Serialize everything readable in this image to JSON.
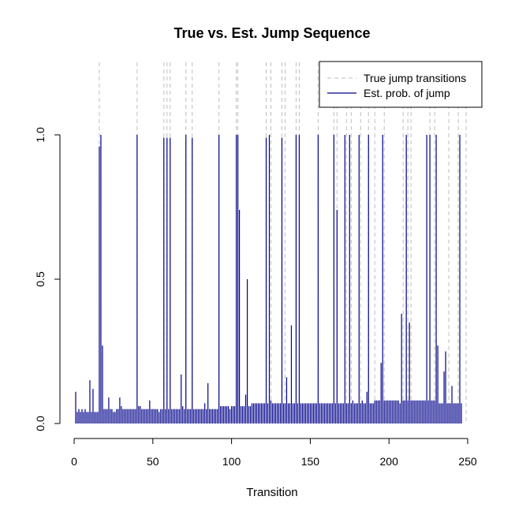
{
  "chart_data": {
    "type": "bar",
    "title": "True vs. Est. Jump Sequence",
    "xlabel": "Transition",
    "ylabel": "",
    "xlim": [
      1,
      250
    ],
    "ylim": [
      0,
      1
    ],
    "x_ticks": [
      0,
      50,
      100,
      150,
      200,
      250
    ],
    "y_ticks": [
      0.0,
      0.5,
      1.0
    ],
    "y_tick_labels": [
      "0.0",
      "0.5",
      "1.0"
    ],
    "grid": false,
    "legend_position": "top-right",
    "colors": {
      "true_jump": "#bebebe",
      "est_prob": "#00008b"
    },
    "series": [
      {
        "name": "True jump transitions",
        "style": "dashed vertical lines",
        "x": [
          16,
          40,
          57,
          59,
          61,
          71,
          75,
          92,
          103,
          104,
          122,
          125,
          132,
          134,
          141,
          143,
          155,
          165,
          167,
          173,
          176,
          182,
          187,
          191,
          197,
          209,
          212,
          214,
          226,
          229,
          238,
          244,
          249
        ]
      },
      {
        "name": "Est. prob. of jump",
        "style": "vertical bars",
        "values": [
          0.11,
          0.04,
          0.05,
          0.04,
          0.05,
          0.04,
          0.05,
          0.04,
          0.04,
          0.15,
          0.04,
          0.12,
          0.04,
          0.04,
          0.04,
          0.96,
          1.0,
          0.27,
          0.05,
          0.05,
          0.05,
          0.09,
          0.05,
          0.05,
          0.04,
          0.04,
          0.05,
          0.05,
          0.09,
          0.06,
          0.05,
          0.05,
          0.05,
          0.05,
          0.05,
          0.05,
          0.05,
          0.05,
          0.05,
          1.0,
          0.06,
          0.06,
          0.05,
          0.05,
          0.05,
          0.05,
          0.05,
          0.08,
          0.05,
          0.05,
          0.05,
          0.05,
          0.05,
          0.04,
          0.05,
          0.05,
          0.99,
          0.05,
          0.99,
          0.05,
          0.99,
          0.05,
          0.05,
          0.05,
          0.05,
          0.05,
          0.05,
          0.17,
          0.06,
          0.05,
          1.0,
          0.05,
          0.05,
          0.05,
          0.99,
          0.05,
          0.05,
          0.05,
          0.05,
          0.05,
          0.05,
          0.05,
          0.07,
          0.05,
          0.14,
          0.05,
          0.05,
          0.05,
          0.05,
          0.05,
          0.05,
          1.0,
          0.06,
          0.06,
          0.06,
          0.06,
          0.06,
          0.06,
          0.05,
          0.06,
          0.06,
          0.06,
          1.0,
          1.0,
          0.74,
          0.06,
          0.06,
          0.06,
          0.1,
          0.5,
          0.06,
          0.06,
          0.07,
          0.07,
          0.07,
          0.07,
          0.07,
          0.07,
          0.07,
          0.07,
          0.07,
          0.99,
          0.07,
          1.0,
          0.08,
          0.07,
          0.07,
          0.07,
          0.07,
          0.07,
          0.07,
          0.99,
          0.07,
          0.07,
          0.16,
          0.07,
          0.07,
          0.34,
          0.07,
          0.07,
          1.0,
          0.07,
          1.0,
          0.07,
          0.07,
          0.07,
          0.07,
          0.07,
          0.07,
          0.07,
          0.07,
          0.07,
          0.07,
          0.07,
          1.0,
          0.07,
          0.07,
          0.07,
          0.07,
          0.07,
          0.07,
          0.07,
          0.07,
          0.07,
          1.0,
          0.07,
          0.74,
          0.07,
          0.07,
          0.07,
          0.07,
          1.0,
          0.07,
          0.07,
          1.0,
          0.07,
          0.08,
          0.07,
          0.07,
          0.07,
          1.0,
          0.07,
          0.08,
          0.07,
          0.07,
          0.11,
          1.0,
          0.07,
          0.07,
          0.07,
          0.08,
          0.08,
          0.08,
          0.08,
          0.21,
          1.0,
          0.08,
          0.08,
          0.08,
          0.08,
          0.08,
          0.08,
          0.08,
          0.08,
          0.08,
          0.08,
          0.07,
          0.38,
          0.08,
          0.08,
          1.0,
          0.08,
          0.35,
          0.08,
          0.08,
          0.08,
          0.08,
          0.08,
          0.08,
          0.08,
          0.08,
          0.08,
          0.08,
          1.0,
          0.08,
          1.0,
          0.08,
          0.08,
          0.08,
          1.0,
          0.27,
          0.07,
          0.07,
          0.07,
          0.18,
          0.25,
          0.07,
          0.07,
          0.07,
          0.13,
          0.07,
          0.07,
          0.07,
          0.07,
          1.0,
          0.07
        ]
      }
    ]
  }
}
